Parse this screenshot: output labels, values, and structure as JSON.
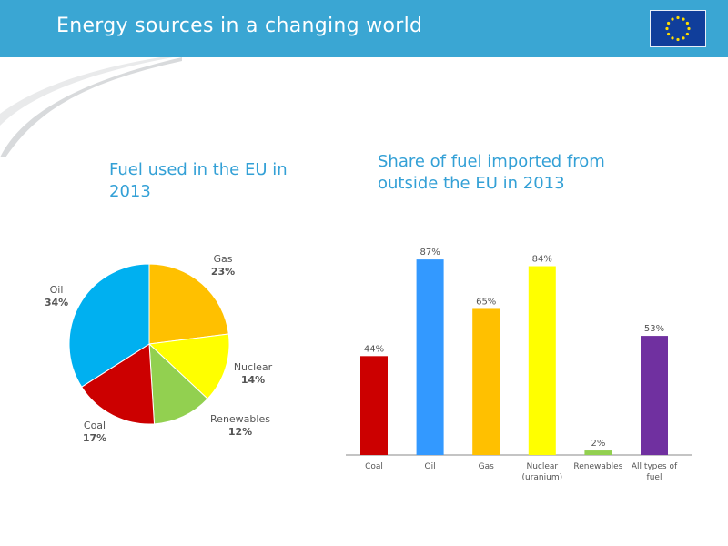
{
  "header": {
    "title": "Energy sources in a changing world",
    "flag_icon": "eu-flag-icon",
    "colors": {
      "bar": "#3aa6d3",
      "flag": "#103e9b",
      "stars": "#ffdd00"
    }
  },
  "pie_section": {
    "title": "Fuel used in the EU in 2013"
  },
  "bar_section": {
    "title": "Share of fuel imported from outside the EU in 2013"
  },
  "chart_data": [
    {
      "type": "pie",
      "title": "Fuel used in the EU in 2013",
      "slices": [
        {
          "label": "Gas",
          "value": 23,
          "pct_label": "23%",
          "color": "#ffc000"
        },
        {
          "label": "Nuclear",
          "value": 14,
          "pct_label": "14%",
          "color": "#ffff00"
        },
        {
          "label": "Renewables",
          "value": 12,
          "pct_label": "12%",
          "color": "#92d050"
        },
        {
          "label": "Coal",
          "value": 17,
          "pct_label": "17%",
          "color": "#cc0000"
        },
        {
          "label": "Oil",
          "value": 34,
          "pct_label": "34%",
          "color": "#00b0f0"
        }
      ]
    },
    {
      "type": "bar",
      "title": "Share of fuel imported from outside the EU in 2013",
      "categories": [
        {
          "label_lines": [
            "Coal"
          ],
          "value": 44,
          "value_label": "44%",
          "color": "#cc0000"
        },
        {
          "label_lines": [
            "Oil"
          ],
          "value": 87,
          "value_label": "87%",
          "color": "#3399ff"
        },
        {
          "label_lines": [
            "Gas"
          ],
          "value": 65,
          "value_label": "65%",
          "color": "#ffc000"
        },
        {
          "label_lines": [
            "Nuclear",
            "(uranium)"
          ],
          "value": 84,
          "value_label": "84%",
          "color": "#ffff00"
        },
        {
          "label_lines": [
            "Renewables"
          ],
          "value": 2,
          "value_label": "2%",
          "color": "#92d050"
        },
        {
          "label_lines": [
            "All types of",
            "fuel"
          ],
          "value": 53,
          "value_label": "53%",
          "color": "#7030a0"
        }
      ],
      "ylim": [
        0,
        100
      ],
      "xlabel": "",
      "ylabel": ""
    }
  ]
}
